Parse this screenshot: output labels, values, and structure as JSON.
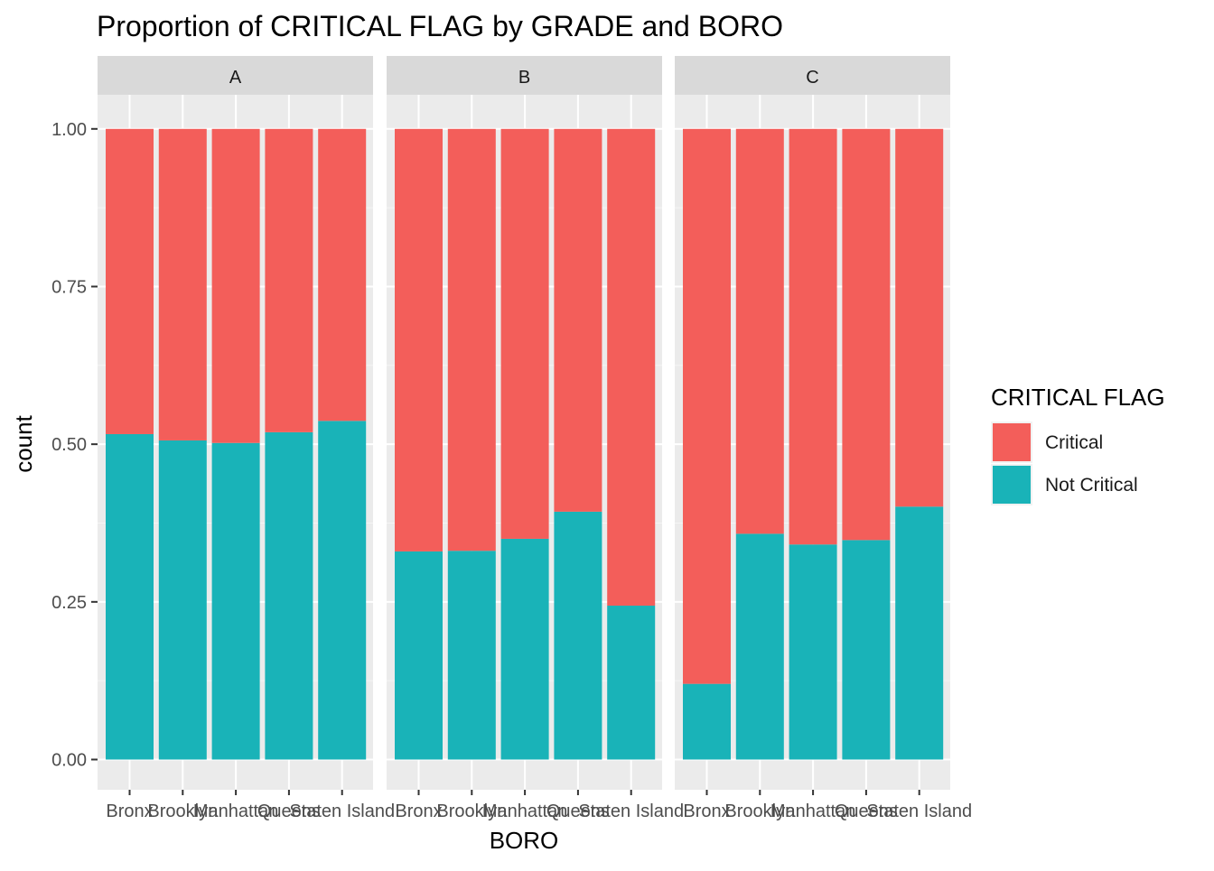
{
  "chart_data": {
    "type": "bar",
    "stacked": true,
    "position": "fill",
    "title": "Proportion of CRITICAL FLAG by GRADE and BORO",
    "xlabel": "BORO",
    "ylabel": "count",
    "ylim": [
      0,
      1
    ],
    "y_ticks": [
      "0.00",
      "0.25",
      "0.50",
      "0.75",
      "1.00"
    ],
    "grid": true,
    "legend": {
      "title": "CRITICAL FLAG",
      "placement": "right",
      "entries": [
        {
          "label": "Critical",
          "color": "#F35E5A"
        },
        {
          "label": "Not Critical",
          "color": "#19B3B8"
        }
      ]
    },
    "categories": [
      "Bronx",
      "Brooklyn",
      "Manhattan",
      "Queens",
      "Staten Island"
    ],
    "facets": [
      {
        "label": "A",
        "series": [
          {
            "name": "Not Critical",
            "values": [
              0.516,
              0.506,
              0.502,
              0.519,
              0.537
            ]
          },
          {
            "name": "Critical",
            "values": [
              0.484,
              0.494,
              0.498,
              0.481,
              0.463
            ]
          }
        ]
      },
      {
        "label": "B",
        "series": [
          {
            "name": "Not Critical",
            "values": [
              0.33,
              0.331,
              0.35,
              0.393,
              0.244
            ]
          },
          {
            "name": "Critical",
            "values": [
              0.67,
              0.669,
              0.65,
              0.607,
              0.756
            ]
          }
        ]
      },
      {
        "label": "C",
        "series": [
          {
            "name": "Not Critical",
            "values": [
              0.12,
              0.358,
              0.341,
              0.348,
              0.401
            ]
          },
          {
            "name": "Critical",
            "values": [
              0.88,
              0.642,
              0.659,
              0.652,
              0.599
            ]
          }
        ]
      }
    ]
  }
}
